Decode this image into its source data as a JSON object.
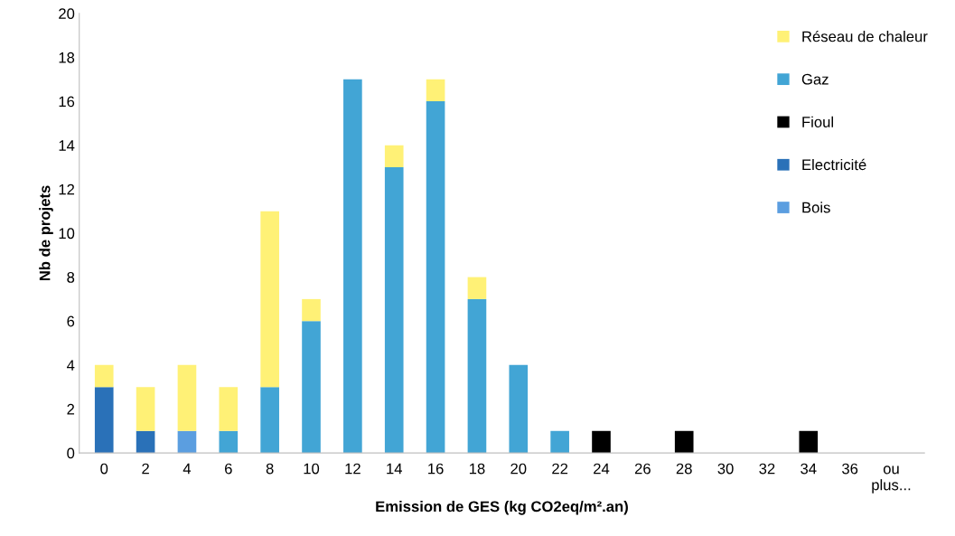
{
  "chart_data": {
    "type": "bar",
    "stacked": true,
    "xlabel": "Emission de GES (kg CO2eq/m².an)",
    "ylabel": "Nb de projets",
    "categories": [
      "0",
      "2",
      "4",
      "6",
      "8",
      "10",
      "12",
      "14",
      "16",
      "18",
      "20",
      "22",
      "24",
      "26",
      "28",
      "30",
      "32",
      "34",
      "36",
      "ou\nplus..."
    ],
    "series": [
      {
        "name": "Bois",
        "color": "#5b9ee0",
        "values": [
          0,
          0,
          1,
          0,
          0,
          0,
          0,
          0,
          0,
          0,
          0,
          0,
          0,
          0,
          0,
          0,
          0,
          0,
          0,
          0
        ]
      },
      {
        "name": "Electricité",
        "color": "#2a71b8",
        "values": [
          3,
          1,
          0,
          0,
          0,
          0,
          0,
          0,
          0,
          0,
          0,
          0,
          0,
          0,
          0,
          0,
          0,
          0,
          0,
          0
        ]
      },
      {
        "name": "Fioul",
        "color": "#000000",
        "values": [
          0,
          0,
          0,
          0,
          0,
          0,
          0,
          0,
          0,
          0,
          0,
          0,
          1,
          0,
          1,
          0,
          0,
          1,
          0,
          0
        ]
      },
      {
        "name": "Gaz",
        "color": "#42a5d5",
        "values": [
          0,
          0,
          0,
          1,
          3,
          6,
          17,
          13,
          16,
          7,
          4,
          1,
          0,
          0,
          0,
          0,
          0,
          0,
          0,
          0
        ]
      },
      {
        "name": "Réseau de chaleur",
        "color": "#fff176",
        "values": [
          1,
          2,
          3,
          2,
          8,
          1,
          0,
          1,
          1,
          1,
          0,
          0,
          0,
          0,
          0,
          0,
          0,
          0,
          0,
          0
        ]
      }
    ],
    "ylim": [
      0,
      20
    ],
    "yticks": [
      0,
      2,
      4,
      6,
      8,
      10,
      12,
      14,
      16,
      18,
      20
    ],
    "grid": false,
    "legend": "right"
  }
}
